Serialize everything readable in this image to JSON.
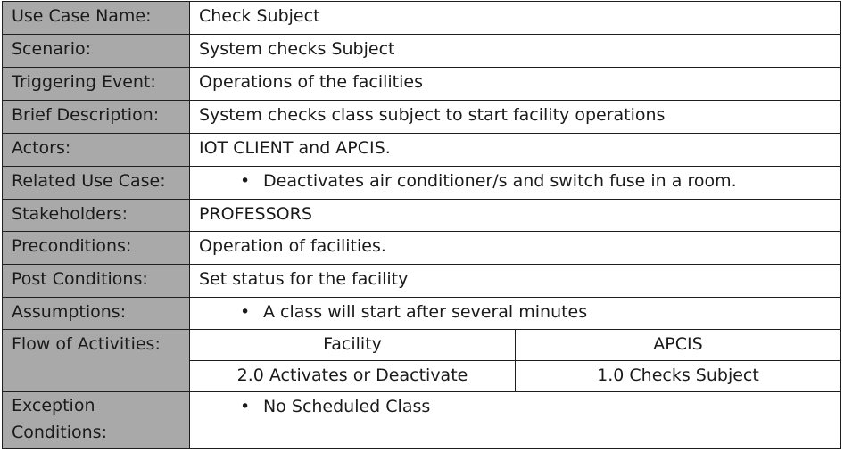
{
  "rows": [
    {
      "label": "Use Case Name:",
      "value": "Check Subject"
    },
    {
      "label": "Scenario:",
      "value": "System checks Subject"
    },
    {
      "label": "Triggering Event:",
      "value": "Operations of the facilities"
    },
    {
      "label": "Brief Description:",
      "value": "System checks class subject to start facility operations"
    },
    {
      "label": "Actors:",
      "value": "IOT CLIENT and APCIS."
    },
    {
      "label": "Related Use Case:",
      "bullet": "Deactivates air conditioner/s and switch fuse in a room."
    },
    {
      "label": "Stakeholders:",
      "value": "PROFESSORS"
    },
    {
      "label": "Preconditions:",
      "value": "Operation of facilities."
    },
    {
      "label": "Post Conditions:",
      "value": "Set status for the facility"
    },
    {
      "label": "Assumptions:",
      "bullet": "A class will start after several minutes"
    }
  ],
  "flow": {
    "label": "Flow of Activities:",
    "headers": [
      "Facility",
      "APCIS"
    ],
    "steps": [
      "2.0 Activates or Deactivate",
      "1.0 Checks Subject"
    ]
  },
  "exception": {
    "label_line1": "Exception",
    "label_line2": "Conditions:",
    "bullet": "No Scheduled Class"
  },
  "bullet_glyph": "•",
  "colors": {
    "label_bg": "#a9a9a9",
    "border": "#1e1e1e"
  }
}
